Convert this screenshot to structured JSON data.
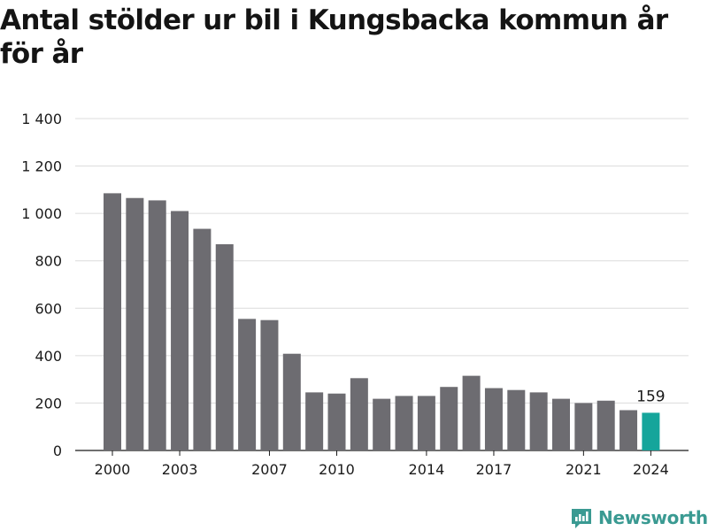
{
  "title": "Antal stölder ur bil i Kungsbacka kommun år för år",
  "brand": {
    "name": "Newsworthy",
    "icon": "newsworthy-logo-icon",
    "color": "#3a9a92"
  },
  "chart_data": {
    "type": "bar",
    "title": "Antal stölder ur bil i Kungsbacka kommun år för år",
    "xlabel": "",
    "ylabel": "",
    "categories": [
      "2000",
      "2001",
      "2002",
      "2003",
      "2004",
      "2005",
      "2006",
      "2007",
      "2008",
      "2009",
      "2010",
      "2011",
      "2012",
      "2013",
      "2014",
      "2015",
      "2016",
      "2017",
      "2018",
      "2019",
      "2020",
      "2021",
      "2022",
      "2023",
      "2024"
    ],
    "values": [
      1085,
      1065,
      1055,
      1010,
      935,
      870,
      555,
      550,
      408,
      245,
      240,
      305,
      218,
      230,
      230,
      268,
      315,
      263,
      255,
      245,
      218,
      200,
      210,
      170,
      159
    ],
    "x_tick_labels": [
      "2000",
      "2003",
      "2007",
      "2010",
      "2014",
      "2017",
      "2021",
      "2024"
    ],
    "y_ticks": [
      0,
      200,
      400,
      600,
      800,
      1000,
      1200,
      1400
    ],
    "y_tick_labels": [
      "0",
      "200",
      "400",
      "600",
      "800",
      "1 000",
      "1 200",
      "1 400"
    ],
    "ylim": [
      0,
      1400
    ],
    "grid": true,
    "legend": "none",
    "bar_color": "#6d6c71",
    "highlight_color": "#15a59b",
    "highlight_category": "2024",
    "highlight_label": "159"
  }
}
